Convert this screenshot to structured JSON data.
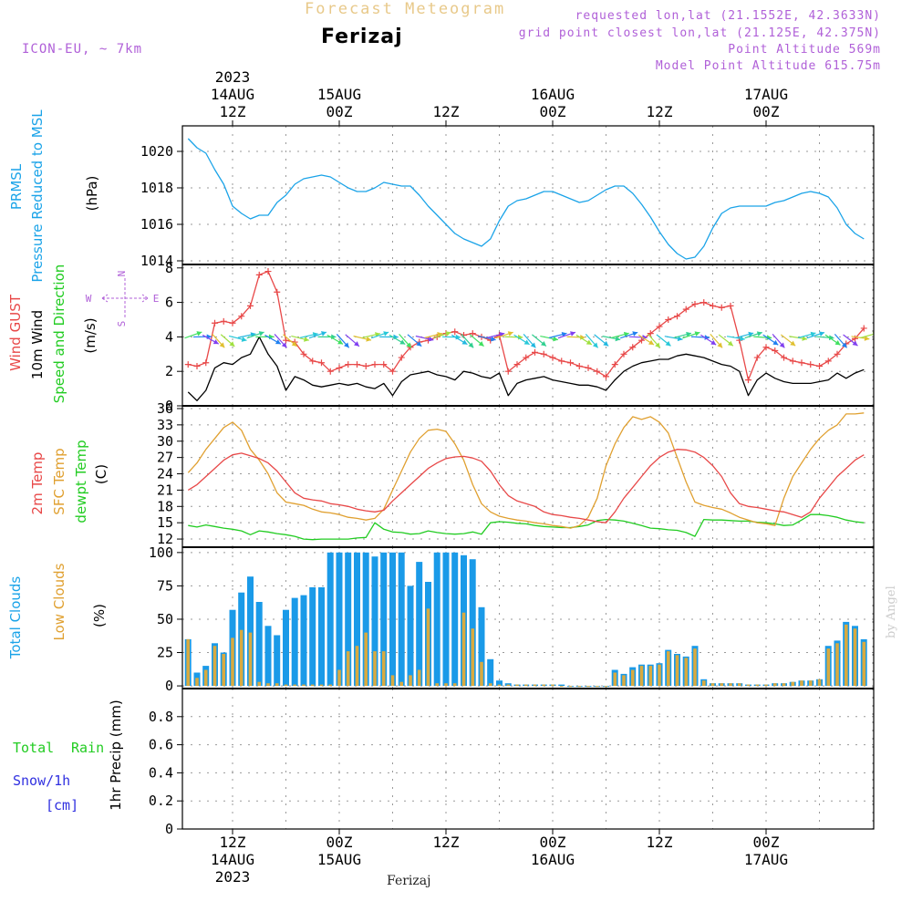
{
  "header": {
    "title": "Forecast Meteogram",
    "city": "Ferizaj",
    "model": "ICON-EU, ~ 7km",
    "requested": "requested lon,lat (21.1552E, 42.3633N)",
    "grid_point": "grid point closest lon,lat (21.125E, 42.375N)",
    "point_altitude": "Point Altitude 569m",
    "model_altitude": "Model Point Altitude 615.75m"
  },
  "footer": {
    "location": "Ferizaj",
    "watermark": "by Angel"
  },
  "colors": {
    "pressure": "#1aa3e8",
    "gust": "#e84848",
    "wind": "#000000",
    "sfc_temp": "#e0a030",
    "temp2m": "#e84848",
    "dewpt": "#22cc22",
    "total_clouds": "#1a9ae8",
    "low_clouds": "#d8aa40",
    "rain": "#22cc22",
    "snow": "#3030e0",
    "purple": "#b060d8"
  },
  "chart_data": {
    "type": "meteogram",
    "time_axis": {
      "step_hours": 1,
      "top_labels": [
        {
          "hour": 0,
          "lines": [
            "2023",
            "14AUG",
            "12Z"
          ]
        },
        {
          "hour": 12,
          "lines": [
            "15AUG",
            "00Z"
          ]
        },
        {
          "hour": 24,
          "lines": [
            "12Z"
          ]
        },
        {
          "hour": 36,
          "lines": [
            "16AUG",
            "00Z"
          ]
        },
        {
          "hour": 48,
          "lines": [
            "12Z"
          ]
        },
        {
          "hour": 60,
          "lines": [
            "17AUG",
            "00Z"
          ]
        }
      ],
      "bottom_labels": [
        {
          "hour": 0,
          "lines": [
            "12Z",
            "14AUG",
            "2023"
          ]
        },
        {
          "hour": 12,
          "lines": [
            "00Z",
            "15AUG"
          ]
        },
        {
          "hour": 24,
          "lines": [
            "12Z"
          ]
        },
        {
          "hour": 36,
          "lines": [
            "00Z",
            "16AUG"
          ]
        },
        {
          "hour": 48,
          "lines": [
            "12Z"
          ]
        },
        {
          "hour": 60,
          "lines": [
            "00Z",
            "17AUG"
          ]
        }
      ]
    },
    "pressure": {
      "labels": [
        "PRMSL",
        "Pressure Reduced to MSL",
        "(hPa)"
      ],
      "unit": "hPa",
      "ylim": [
        1013.8,
        1021.4
      ],
      "ticks": [
        1014,
        1016,
        1018,
        1020
      ],
      "start_hour": -5,
      "end_hour": 71,
      "values": [
        1020.7,
        1020.2,
        1019.9,
        1019.0,
        1018.2,
        1017.0,
        1016.6,
        1016.3,
        1016.5,
        1016.5,
        1017.2,
        1017.6,
        1018.2,
        1018.5,
        1018.6,
        1018.7,
        1018.6,
        1018.3,
        1018.0,
        1017.8,
        1017.8,
        1018.0,
        1018.3,
        1018.2,
        1018.1,
        1018.1,
        1017.6,
        1017.0,
        1016.5,
        1016.0,
        1015.5,
        1015.2,
        1015.0,
        1014.8,
        1015.2,
        1016.2,
        1017.0,
        1017.3,
        1017.4,
        1017.6,
        1017.8,
        1017.8,
        1017.6,
        1017.4,
        1017.2,
        1017.3,
        1017.6,
        1017.9,
        1018.1,
        1018.1,
        1017.7,
        1017.1,
        1016.4,
        1015.6,
        1014.9,
        1014.4,
        1014.1,
        1014.2,
        1014.8,
        1015.8,
        1016.6,
        1016.9,
        1017.0,
        1017.0,
        1017.0,
        1017.0,
        1017.2,
        1017.3,
        1017.5,
        1017.7,
        1017.8,
        1017.7,
        1017.5,
        1016.9,
        1016.0,
        1015.5,
        1015.2
      ]
    },
    "wind": {
      "labels": [
        "Wind GUST",
        "10m Wind",
        "Speed and Direction",
        "(m/s)"
      ],
      "compass": [
        "N",
        "W",
        "E",
        "S"
      ],
      "unit": "m/s",
      "ylim": [
        0,
        8.2
      ],
      "ticks": [
        0,
        2,
        4,
        6,
        8
      ],
      "gust_start_hour": -5,
      "gust_end_hour": 71,
      "gust": [
        2.4,
        2.3,
        2.5,
        4.8,
        4.9,
        4.8,
        5.2,
        5.8,
        7.6,
        7.8,
        6.6,
        3.8,
        3.7,
        3.0,
        2.6,
        2.5,
        2.0,
        2.2,
        2.4,
        2.4,
        2.3,
        2.4,
        2.4,
        2.0,
        2.8,
        3.4,
        3.7,
        3.8,
        4.0,
        4.2,
        4.3,
        4.1,
        4.2,
        4.0,
        3.8,
        4.1,
        2.0,
        2.4,
        2.8,
        3.1,
        3.0,
        2.8,
        2.6,
        2.5,
        2.3,
        2.2,
        2.0,
        1.7,
        2.4,
        3.0,
        3.4,
        3.8,
        4.2,
        4.6,
        5.0,
        5.2,
        5.6,
        5.9,
        6.0,
        5.8,
        5.7,
        5.8,
        3.8,
        1.5,
        2.8,
        3.4,
        3.2,
        2.8,
        2.6,
        2.5,
        2.4,
        2.3,
        2.6,
        3.0,
        3.6,
        3.9,
        4.5
      ],
      "speed_start_hour": -5,
      "speed_end_hour": 71,
      "speed": [
        0.8,
        0.3,
        0.9,
        2.2,
        2.5,
        2.4,
        2.8,
        3.0,
        4.0,
        3.0,
        2.3,
        0.9,
        1.7,
        1.5,
        1.2,
        1.1,
        1.2,
        1.3,
        1.2,
        1.3,
        1.1,
        1.0,
        1.3,
        0.6,
        1.4,
        1.8,
        1.9,
        2.0,
        1.8,
        1.7,
        1.5,
        2.0,
        1.9,
        1.7,
        1.6,
        1.9,
        0.6,
        1.3,
        1.5,
        1.6,
        1.7,
        1.5,
        1.4,
        1.3,
        1.2,
        1.2,
        1.1,
        0.9,
        1.5,
        2.0,
        2.3,
        2.5,
        2.6,
        2.7,
        2.7,
        2.9,
        3.0,
        2.9,
        2.8,
        2.6,
        2.4,
        2.3,
        2.0,
        0.6,
        1.5,
        1.9,
        1.6,
        1.4,
        1.3,
        1.3,
        1.3,
        1.4,
        1.5,
        1.9,
        1.6,
        1.9,
        2.1
      ]
    },
    "temperature": {
      "labels": [
        "2m Temp",
        "SFC Temp",
        "dewpt Temp",
        "(C)"
      ],
      "unit": "C",
      "ylim": [
        10.5,
        36.5
      ],
      "ticks": [
        12,
        15,
        18,
        21,
        24,
        27,
        30,
        33,
        36
      ],
      "start_hour": -5,
      "end_hour": 71,
      "temp2m": [
        21.0,
        22.0,
        23.5,
        25.0,
        26.5,
        27.5,
        27.8,
        27.3,
        26.8,
        26.0,
        24.5,
        22.5,
        20.5,
        19.5,
        19.2,
        19.0,
        18.5,
        18.3,
        18.0,
        17.5,
        17.2,
        17.0,
        17.3,
        19.0,
        20.5,
        22.0,
        23.5,
        25.0,
        26.0,
        26.8,
        27.1,
        27.2,
        26.9,
        26.3,
        24.5,
        22.0,
        20.0,
        19.0,
        18.5,
        18.0,
        17.0,
        16.5,
        16.3,
        16.0,
        15.8,
        15.5,
        15.2,
        15.0,
        17.0,
        19.5,
        21.5,
        23.5,
        25.5,
        27.0,
        28.0,
        28.5,
        28.4,
        28.0,
        27.0,
        25.5,
        23.5,
        20.5,
        18.5,
        18.0,
        17.8,
        17.5,
        17.2,
        17.0,
        16.5,
        16.0,
        17.0,
        19.5,
        21.5,
        23.5,
        25.0,
        26.5,
        27.5
      ],
      "sfc": [
        24.2,
        26.0,
        28.5,
        30.5,
        32.5,
        33.5,
        32.0,
        28.5,
        26.5,
        24.0,
        20.5,
        18.8,
        18.5,
        18.2,
        17.5,
        17.0,
        16.8,
        16.5,
        16.0,
        15.8,
        15.5,
        15.8,
        17.5,
        21.0,
        24.5,
        28.0,
        30.5,
        32.0,
        32.2,
        31.8,
        29.5,
        26.5,
        22.0,
        18.5,
        17.0,
        16.2,
        15.8,
        15.5,
        15.3,
        15.0,
        14.8,
        14.5,
        14.3,
        14.0,
        14.5,
        16.0,
        19.5,
        25.5,
        29.5,
        32.5,
        34.5,
        34.0,
        34.5,
        33.5,
        31.5,
        27.0,
        22.5,
        18.8,
        18.2,
        17.8,
        17.5,
        16.8,
        16.0,
        15.5,
        15.0,
        14.8,
        14.5,
        19.5,
        23.5,
        26.0,
        28.5,
        30.5,
        32.0,
        33.0,
        35.0,
        35.0,
        35.2
      ],
      "dewpt": [
        14.5,
        14.2,
        14.6,
        14.3,
        14.0,
        13.8,
        13.5,
        12.8,
        13.5,
        13.3,
        13.0,
        12.8,
        12.5,
        12.0,
        11.9,
        12.0,
        12.0,
        12.0,
        12.0,
        12.2,
        12.3,
        15.0,
        13.8,
        13.3,
        13.2,
        12.9,
        13.0,
        13.5,
        13.2,
        13.0,
        12.9,
        13.0,
        13.3,
        12.9,
        15.0,
        15.2,
        15.1,
        14.9,
        14.8,
        14.5,
        14.3,
        14.2,
        14.1,
        14.1,
        14.3,
        14.6,
        15.4,
        15.6,
        15.5,
        15.3,
        14.9,
        14.5,
        14.0,
        13.9,
        13.7,
        13.6,
        13.2,
        12.5,
        15.6,
        15.5,
        15.5,
        15.4,
        15.3,
        15.3,
        15.1,
        15.0,
        14.8,
        14.5,
        14.6,
        15.5,
        16.5,
        16.5,
        16.3,
        16.0,
        15.5,
        15.2,
        15.0
      ]
    },
    "clouds": {
      "labels": [
        "Total Clouds",
        "Low Clouds",
        "(%)"
      ],
      "unit": "%",
      "ylim": [
        -2,
        104
      ],
      "ticks": [
        0,
        25,
        50,
        75,
        100
      ],
      "start_hour": -5,
      "end_hour": 71,
      "total": [
        35,
        10,
        15,
        32,
        25,
        57,
        70,
        82,
        63,
        45,
        38,
        57,
        66,
        68,
        74,
        74,
        100,
        100,
        100,
        100,
        100,
        97,
        100,
        100,
        100,
        75,
        93,
        78,
        100,
        100,
        100,
        98,
        95,
        59,
        20,
        4,
        2,
        1,
        1,
        1,
        1,
        1,
        1,
        0,
        0,
        0,
        0,
        0,
        12,
        9,
        14,
        16,
        16,
        17,
        27,
        24,
        22,
        30,
        5,
        2,
        2,
        2,
        2,
        1,
        1,
        1,
        2,
        2,
        3,
        4,
        4,
        5,
        30,
        34,
        48,
        45,
        35
      ],
      "low": [
        35,
        6,
        12,
        30,
        24,
        36,
        42,
        40,
        3,
        2,
        2,
        1,
        1,
        1,
        1,
        1,
        1,
        12,
        26,
        30,
        40,
        26,
        26,
        8,
        3,
        8,
        12,
        58,
        2,
        2,
        2,
        55,
        43,
        18,
        2,
        1,
        1,
        1,
        1,
        1,
        1,
        1,
        0,
        0,
        0,
        0,
        0,
        0,
        10,
        8,
        12,
        15,
        15,
        16,
        26,
        23,
        21,
        28,
        4,
        2,
        2,
        2,
        2,
        1,
        1,
        1,
        2,
        2,
        3,
        4,
        4,
        5,
        28,
        32,
        46,
        43,
        33
      ]
    },
    "precip": {
      "labels": [
        "Total",
        "Rain",
        "Snow/1h",
        "[cm]",
        "1hr Precip (mm)"
      ],
      "unit": "mm",
      "ylim": [
        0,
        1.0
      ],
      "ticks": [
        0,
        0.2,
        0.4,
        0.6,
        0.8
      ],
      "tick_labels": [
        "0",
        "0.2",
        "0.4",
        "0.6",
        "0.8"
      ],
      "values": []
    }
  }
}
